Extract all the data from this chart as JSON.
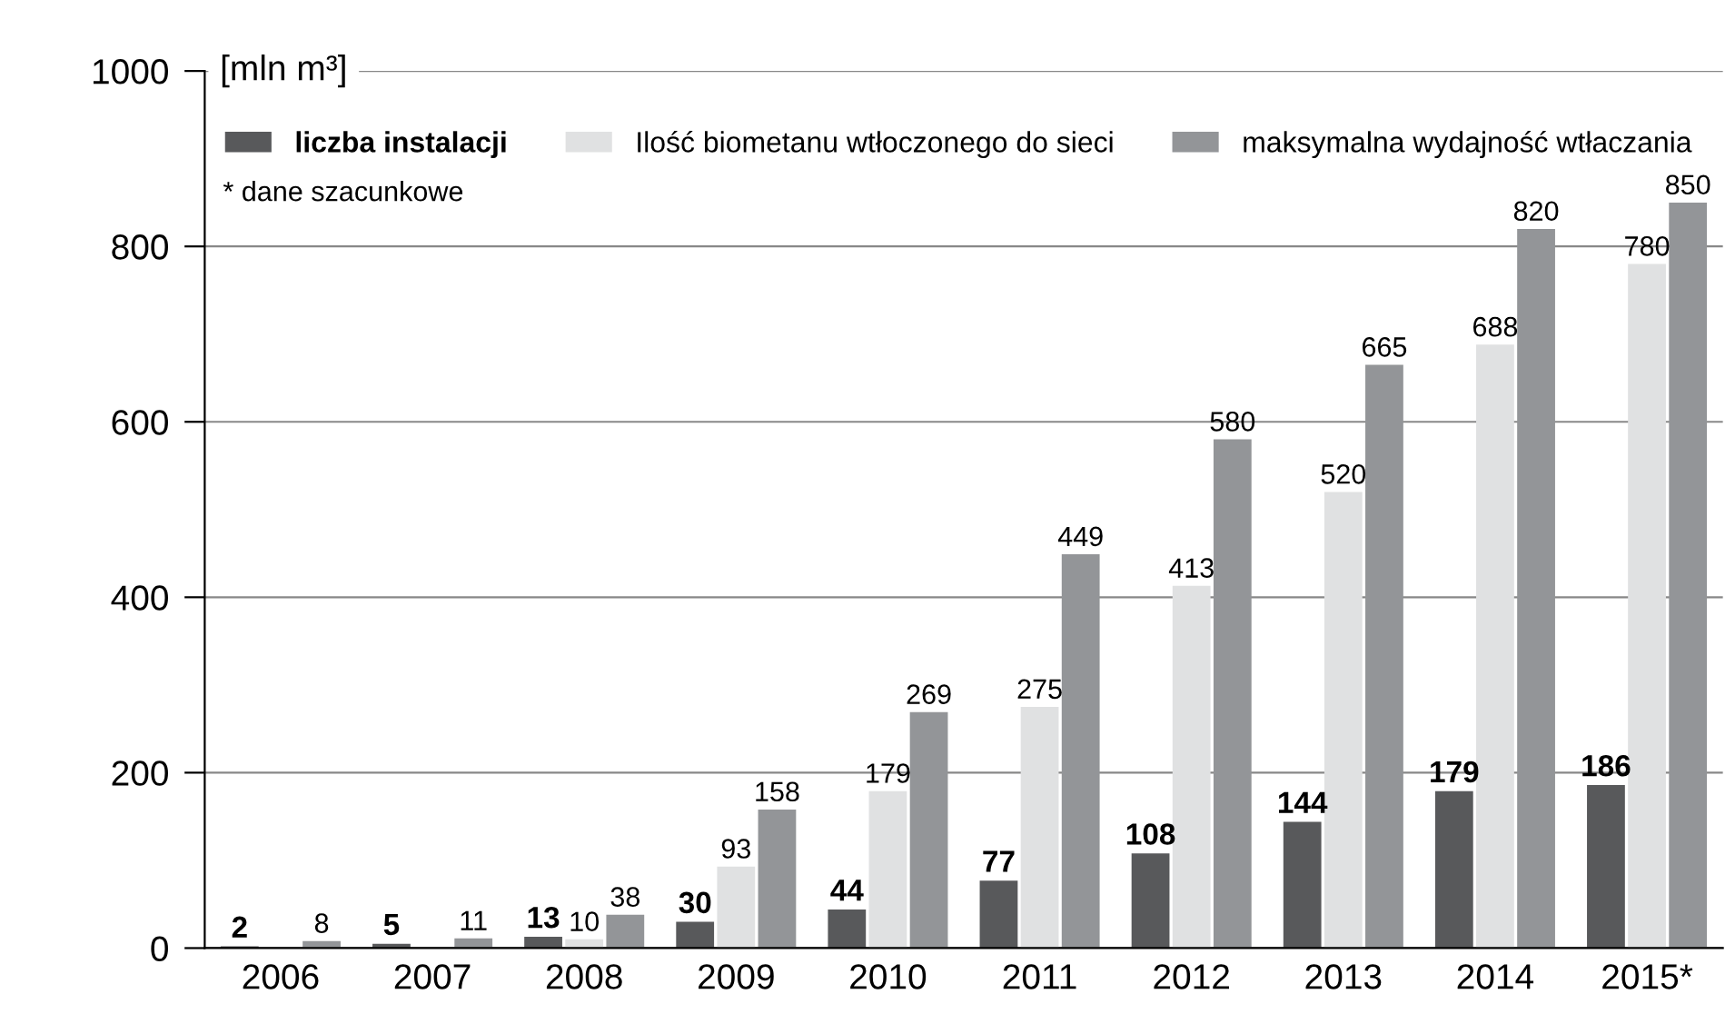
{
  "chart_data": {
    "type": "bar",
    "ylabel": "[mln m³]",
    "categories": [
      "2006",
      "2007",
      "2008",
      "2009",
      "2010",
      "2011",
      "2012",
      "2013",
      "2014",
      "2015*"
    ],
    "series": [
      {
        "name": "liczba instalacji",
        "color": "#58595b",
        "values": [
          2,
          5,
          13,
          30,
          44,
          77,
          108,
          144,
          179,
          186
        ]
      },
      {
        "name": "Ilość biometanu wtłoczonego do sieci",
        "color": "#e0e1e2",
        "values": [
          null,
          null,
          10,
          93,
          179,
          275,
          413,
          520,
          688,
          780
        ]
      },
      {
        "name": "maksymalna wydajność wtłaczania",
        "color": "#939598",
        "values": [
          8,
          11,
          38,
          158,
          269,
          449,
          580,
          665,
          820,
          850
        ]
      }
    ],
    "ylim": [
      0,
      1000
    ],
    "yticks": [
      0,
      200,
      400,
      600,
      800,
      1000
    ],
    "grid": "y",
    "legend": "top left",
    "data_labels": true,
    "annotations": [
      "* dane szacunkowe"
    ]
  }
}
